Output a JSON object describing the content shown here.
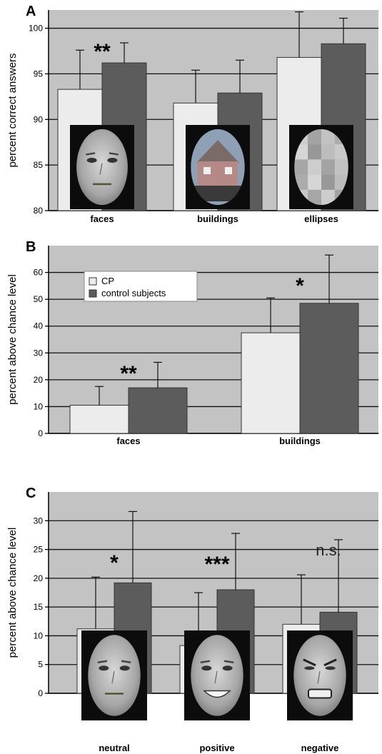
{
  "colors": {
    "plot_bg": "#c3c3c3",
    "cp_bar": "#ececec",
    "control_bar": "#5c5c5c",
    "gridline": "#111111"
  },
  "legend": {
    "items": [
      {
        "label": "CP",
        "color": "#ececec"
      },
      {
        "label": "control subjects",
        "color": "#5c5c5c"
      }
    ]
  },
  "chart_data": [
    {
      "panel": "A",
      "type": "bar",
      "ylabel": "percent correct answers",
      "ylim": [
        80,
        102
      ],
      "yticks": [
        80,
        85,
        90,
        95,
        100
      ],
      "categories": [
        "faces",
        "buildings",
        "ellipses"
      ],
      "series": [
        {
          "name": "CP",
          "values": [
            93.3,
            91.8,
            96.8
          ],
          "errors": [
            4.3,
            3.6,
            5.0
          ]
        },
        {
          "name": "control subjects",
          "values": [
            96.2,
            92.9,
            98.3
          ],
          "errors": [
            2.2,
            3.6,
            2.8
          ]
        }
      ],
      "significance": [
        "**",
        "",
        ""
      ],
      "images": [
        "face-neutral-icon",
        "building-icon",
        "ellipse-mosaic-icon"
      ],
      "grid": true
    },
    {
      "panel": "B",
      "type": "bar",
      "ylabel": "percent above chance level",
      "ylim": [
        0,
        70
      ],
      "yticks": [
        0,
        10,
        20,
        30,
        40,
        50,
        60
      ],
      "categories": [
        "faces",
        "buildings"
      ],
      "series": [
        {
          "name": "CP",
          "values": [
            10.5,
            37.5
          ],
          "errors": [
            7.0,
            13.0
          ]
        },
        {
          "name": "control subjects",
          "values": [
            17.0,
            48.5
          ],
          "errors": [
            9.5,
            18.0
          ]
        }
      ],
      "significance": [
        "**",
        "*"
      ],
      "legend_position": "top-left",
      "grid": true
    },
    {
      "panel": "C",
      "type": "bar",
      "ylabel": "percent above chance level",
      "ylim": [
        0,
        35
      ],
      "yticks": [
        0,
        5,
        10,
        15,
        20,
        25,
        30
      ],
      "categories": [
        "neutral",
        "positive",
        "negative"
      ],
      "series": [
        {
          "name": "CP",
          "values": [
            11.2,
            8.3,
            12.0
          ],
          "errors": [
            9.0,
            9.2,
            8.6
          ]
        },
        {
          "name": "control subjects",
          "values": [
            19.2,
            18.0,
            14.1
          ],
          "errors": [
            12.4,
            9.8,
            12.6
          ]
        }
      ],
      "significance": [
        "*",
        "***",
        "n.s."
      ],
      "images": [
        "face-neutral-icon",
        "face-smiling-icon",
        "face-angry-icon"
      ],
      "grid": true
    }
  ]
}
